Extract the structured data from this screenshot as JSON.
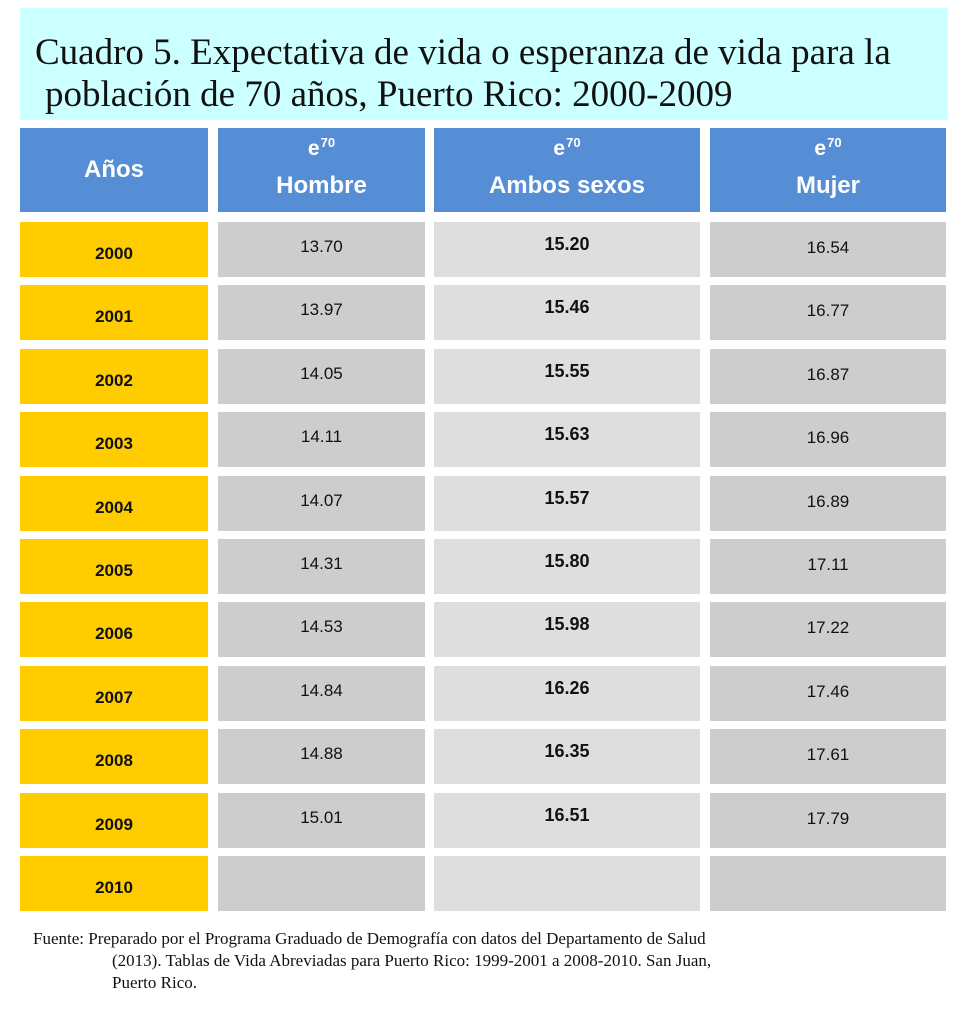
{
  "title": {
    "line1": "Cuadro 5. Expectativa de vida o esperanza de vida para la",
    "line2": "población de 70 años, Puerto Rico: 2000-2009"
  },
  "headers": {
    "years": "Años",
    "symbol": "e",
    "superscript": "70",
    "male": "Hombre",
    "both": "Ambos sexos",
    "female": "Mujer"
  },
  "rows": [
    {
      "year": "2000",
      "male": "13.70",
      "both": "15.20",
      "female": "16.54"
    },
    {
      "year": "2001",
      "male": "13.97",
      "both": "15.46",
      "female": "16.77"
    },
    {
      "year": "2002",
      "male": "14.05",
      "both": "15.55",
      "female": "16.87"
    },
    {
      "year": "2003",
      "male": "14.11",
      "both": "15.63",
      "female": "16.96"
    },
    {
      "year": "2004",
      "male": "14.07",
      "both": "15.57",
      "female": "16.89"
    },
    {
      "year": "2005",
      "male": "14.31",
      "both": "15.80",
      "female": "17.11"
    },
    {
      "year": "2006",
      "male": "14.53",
      "both": "15.98",
      "female": "17.22"
    },
    {
      "year": "2007",
      "male": "14.84",
      "both": "16.26",
      "female": "17.46"
    },
    {
      "year": "2008",
      "male": "14.88",
      "both": "16.35",
      "female": "17.61"
    },
    {
      "year": "2009",
      "male": "15.01",
      "both": "16.51",
      "female": "17.79"
    },
    {
      "year": "2010",
      "male": "",
      "both": "",
      "female": ""
    }
  ],
  "source": {
    "line1": "Fuente: Preparado por el Programa Graduado de Demografía con datos del Departamento de Salud",
    "line2": "(2013). Tablas de Vida Abreviadas para Puerto Rico: 1999-2001 a  2008-2010. San Juan,",
    "line3": "Puerto Rico."
  },
  "colors": {
    "title_bg": "#ccffff",
    "header_bg": "#558ed5",
    "year_bg": "#ffcc00",
    "cell_bg": "#cdcdcd",
    "cell_bg_alt": "#dedede"
  }
}
